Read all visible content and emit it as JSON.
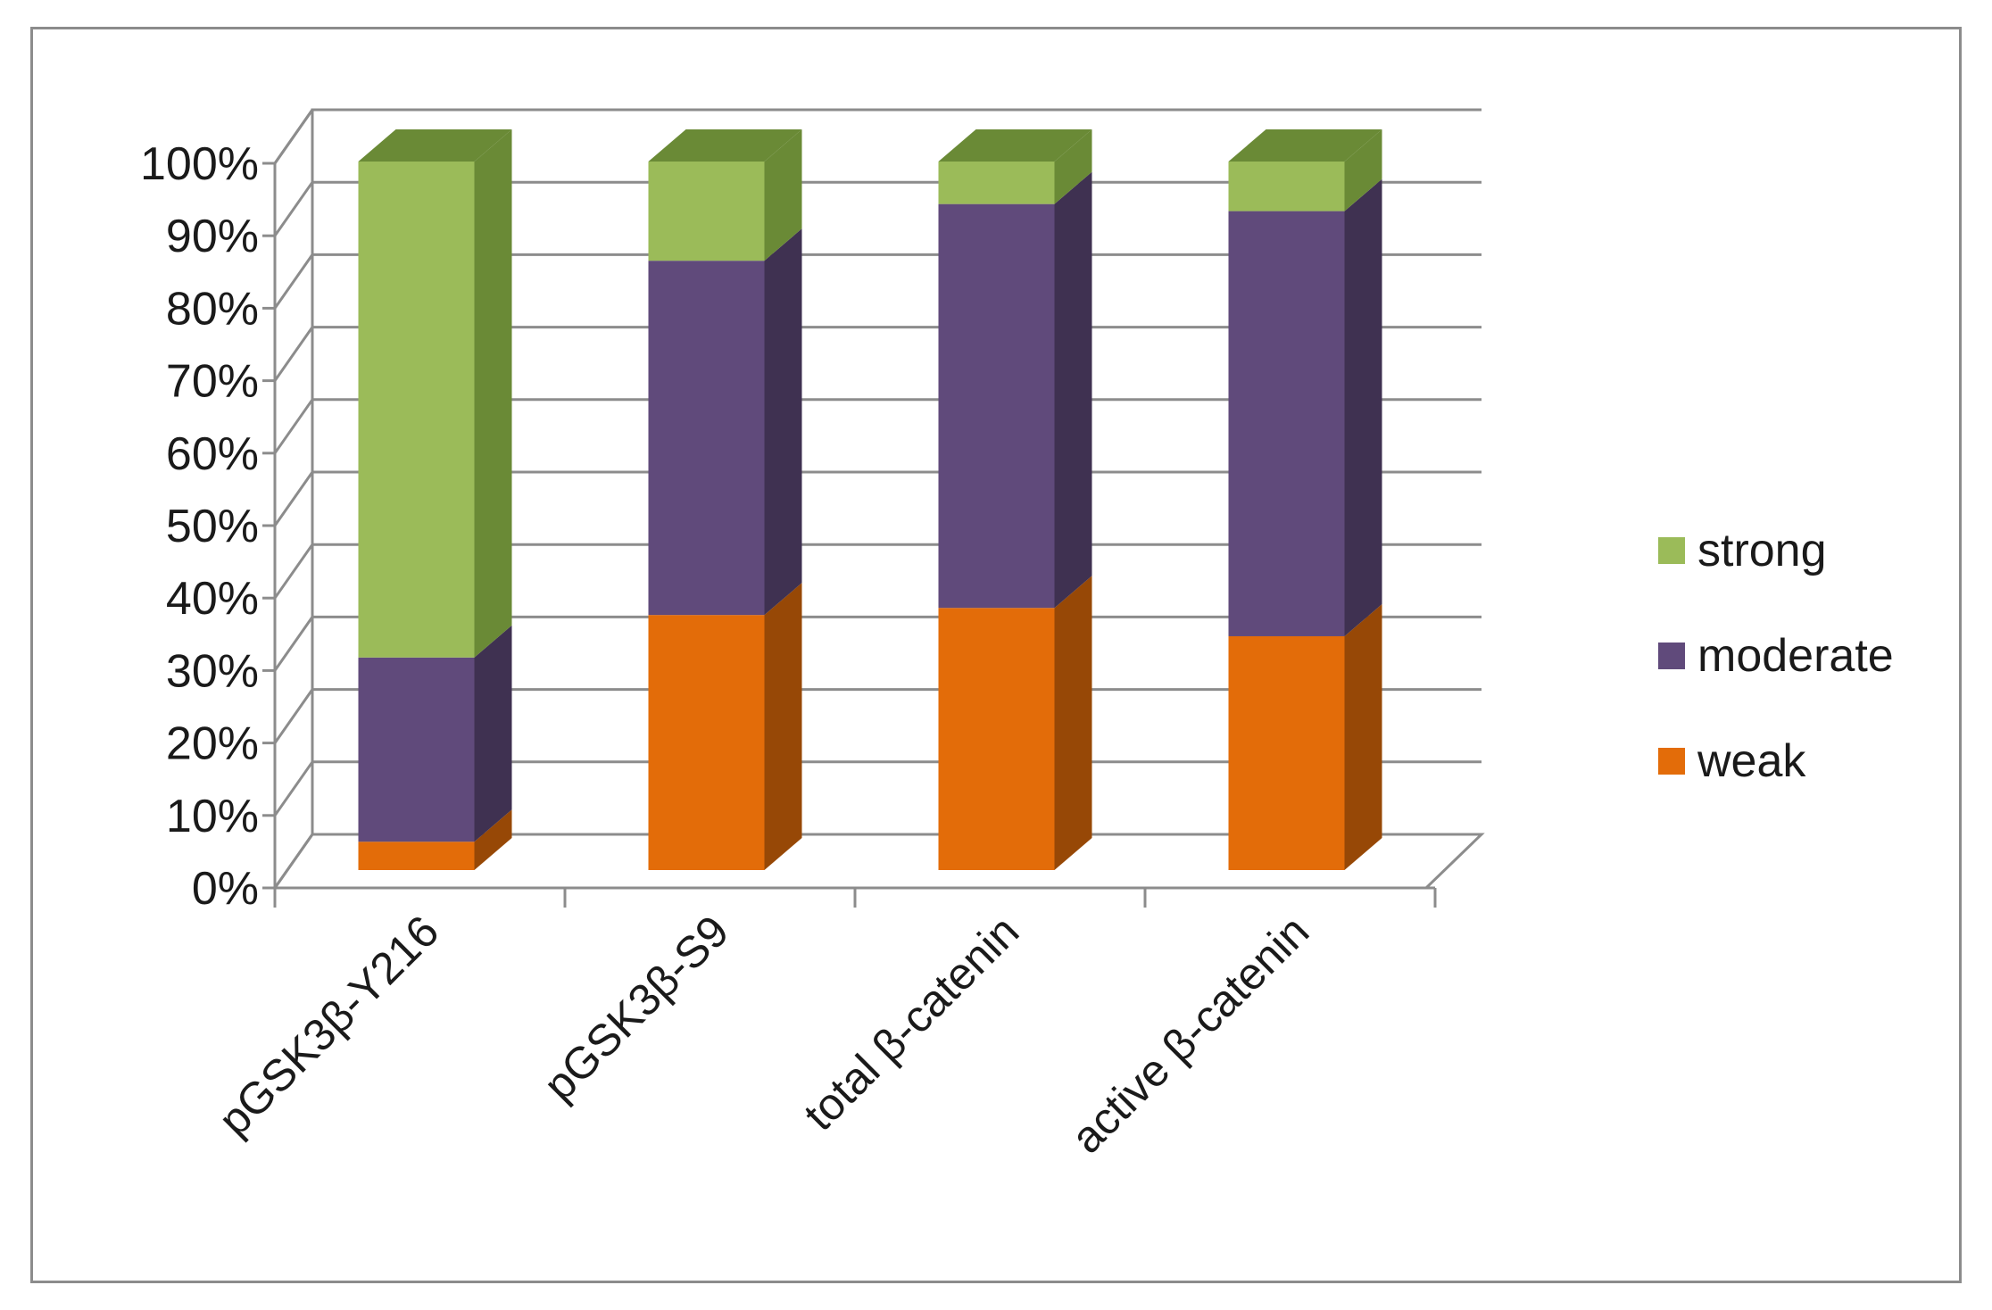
{
  "chart_data": {
    "type": "bar",
    "stacked": true,
    "percent_stacked": true,
    "three_d": true,
    "categories": [
      "pGSK3β-Y216",
      "pGSK3β-S9",
      "total β-catenin",
      "active β-catenin"
    ],
    "series": [
      {
        "name": "weak",
        "values": [
          4,
          36,
          37,
          33
        ],
        "color": "#e36c09",
        "side_color": "#974806"
      },
      {
        "name": "moderate",
        "values": [
          26,
          50,
          57,
          60
        ],
        "color": "#604a7b",
        "side_color": "#3f3151"
      },
      {
        "name": "strong",
        "values": [
          70,
          14,
          6,
          7
        ],
        "color": "#9bbb59",
        "side_color": "#6a8a36"
      }
    ],
    "ylim": [
      0,
      100
    ],
    "y_ticks": [
      "0%",
      "10%",
      "20%",
      "30%",
      "40%",
      "50%",
      "60%",
      "70%",
      "80%",
      "90%",
      "100%"
    ],
    "grid": true,
    "legend_position": "right"
  }
}
